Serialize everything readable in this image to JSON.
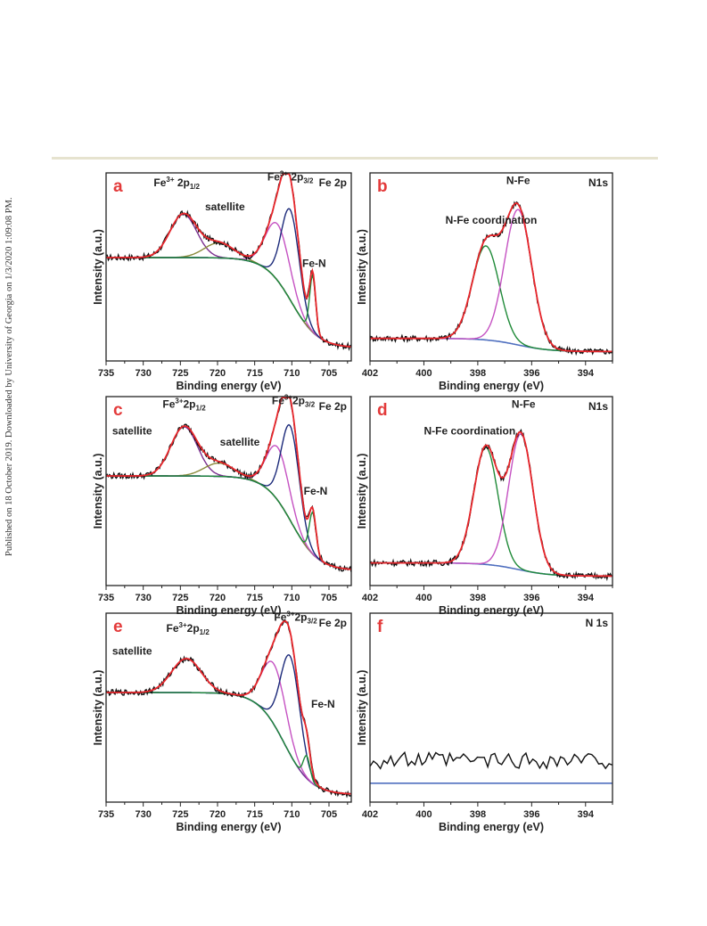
{
  "side_note": "Published on 18 October 2019. Downloaded by University of Georgia on 1/3/2020 1:09:08 PM.",
  "colors": {
    "experimental": "#111111",
    "envelope": "#e8262b",
    "background": "#4f6fbf",
    "purple": "#7b2f8f",
    "olive": "#8a8a3a",
    "magenta": "#c552c2",
    "navy": "#1c2a7a",
    "green": "#1f8a38"
  },
  "chart_data": [
    {
      "panel": "a",
      "type": "line",
      "corner_label": "Fe 2p",
      "xlabel": "Binding energy (eV)",
      "ylabel": "Intensity (a.u.)",
      "xlim": [
        735,
        702
      ],
      "x_reversed": true,
      "xticks": [
        735,
        730,
        725,
        720,
        715,
        710,
        705
      ],
      "tick_labels": [
        "735",
        "730",
        "725",
        "720",
        "715",
        "710",
        "705"
      ],
      "ylim": [
        0,
        1
      ],
      "background": {
        "start": 0.55,
        "step_center": 710,
        "end": 0.07
      },
      "peaks": [
        {
          "name": "Fe3+ 2p1/2",
          "center": 724.6,
          "height": 0.23,
          "width": 1.8,
          "color": "purple"
        },
        {
          "name": "satellite",
          "center": 719.8,
          "height": 0.08,
          "width": 2.0,
          "color": "olive"
        },
        {
          "name": "Fe3+ 2p3/2 sat.",
          "center": 711.9,
          "height": 0.3,
          "width": 1.6,
          "color": "magenta"
        },
        {
          "name": "Fe3+ 2p3/2",
          "center": 710.2,
          "height": 0.48,
          "width": 1.2,
          "color": "navy"
        },
        {
          "name": "Fe-N",
          "center": 707.2,
          "height": 0.3,
          "width": 0.4,
          "color": "green"
        }
      ],
      "labels": [
        {
          "base": "Fe",
          "sup": "3+",
          "main": " 2p",
          "sub": "1/2",
          "x": 725.5,
          "y": 0.93
        },
        {
          "base": "satellite",
          "x": 719,
          "y": 0.8
        },
        {
          "base": "Fe",
          "sup": "3+",
          "main": " 2p",
          "sub": "3/2",
          "x": 710.2,
          "y": 0.96
        },
        {
          "base": "Fe-N",
          "x": 707,
          "y": 0.5
        }
      ]
    },
    {
      "panel": "b",
      "type": "line",
      "corner_label": "N1s",
      "xlabel": "Binding energy (eV)",
      "ylabel": "Intensity (a.u.)",
      "xlim": [
        402,
        393
      ],
      "x_reversed": true,
      "xticks": [
        402,
        400,
        398,
        396,
        394
      ],
      "tick_labels": [
        "402",
        "400",
        "398",
        "396",
        "394"
      ],
      "ylim": [
        0,
        1
      ],
      "background": {
        "start": 0.12,
        "step_center": 396.5,
        "end": 0.05
      },
      "peaks": [
        {
          "name": "N-Fe coordination",
          "center": 397.7,
          "height": 0.5,
          "width": 0.5,
          "color": "green"
        },
        {
          "name": "N-Fe",
          "center": 396.5,
          "height": 0.72,
          "width": 0.5,
          "color": "magenta"
        }
      ],
      "labels": [
        {
          "base": "N-Fe coordination",
          "x": 397.5,
          "y": 0.73
        },
        {
          "base": "N-Fe",
          "x": 396.5,
          "y": 0.94
        }
      ]
    },
    {
      "panel": "c",
      "type": "line",
      "corner_label": "Fe 2p",
      "xlabel": "Binding energy (eV)",
      "ylabel": "Intensity (a.u.)",
      "xlim": [
        735,
        702
      ],
      "x_reversed": true,
      "xticks": [
        735,
        730,
        725,
        720,
        715,
        710,
        705
      ],
      "tick_labels": [
        "735",
        "730",
        "725",
        "720",
        "715",
        "710",
        "705"
      ],
      "ylim": [
        0,
        1
      ],
      "background": {
        "start": 0.58,
        "step_center": 710,
        "end": 0.08
      },
      "peaks": [
        {
          "name": "Fe3+ 2p1/2",
          "center": 724.5,
          "height": 0.26,
          "width": 1.8,
          "color": "purple"
        },
        {
          "name": "satellite",
          "center": 719.8,
          "height": 0.07,
          "width": 2.0,
          "color": "olive"
        },
        {
          "name": "Fe3+ 2p3/2 sat.",
          "center": 711.9,
          "height": 0.28,
          "width": 1.5,
          "color": "magenta"
        },
        {
          "name": "Fe3+ 2p3/2",
          "center": 710.2,
          "height": 0.5,
          "width": 1.2,
          "color": "navy"
        },
        {
          "name": "Fe-N",
          "center": 707.2,
          "height": 0.22,
          "width": 0.45,
          "color": "green"
        }
      ],
      "labels": [
        {
          "base": "satellite",
          "x": 731.5,
          "y": 0.8
        },
        {
          "base": "Fe",
          "sup": "3+",
          "main": "2p",
          "sub": "1/2",
          "x": 724.5,
          "y": 0.94
        },
        {
          "base": "satellite",
          "x": 717,
          "y": 0.74
        },
        {
          "base": "Fe",
          "sup": "3+",
          "main": "2p",
          "sub": "3/2",
          "x": 709.8,
          "y": 0.96
        },
        {
          "base": "Fe-N",
          "x": 706.8,
          "y": 0.48
        }
      ]
    },
    {
      "panel": "d",
      "type": "line",
      "corner_label": "N1s",
      "xlabel": "Binding energy (eV)",
      "ylabel": "Intensity (a.u.)",
      "xlim": [
        402,
        393
      ],
      "x_reversed": true,
      "xticks": [
        402,
        400,
        398,
        396,
        394
      ],
      "tick_labels": [
        "402",
        "400",
        "398",
        "396",
        "394"
      ],
      "ylim": [
        0,
        1
      ],
      "background": {
        "start": 0.12,
        "step_center": 396.5,
        "end": 0.05
      },
      "peaks": [
        {
          "name": "N-Fe coordination",
          "center": 397.7,
          "height": 0.62,
          "width": 0.45,
          "color": "green"
        },
        {
          "name": "N-Fe",
          "center": 396.4,
          "height": 0.72,
          "width": 0.45,
          "color": "magenta"
        }
      ],
      "labels": [
        {
          "base": "N-Fe coordination",
          "x": 398.3,
          "y": 0.8
        },
        {
          "base": "N-Fe",
          "x": 396.3,
          "y": 0.94
        }
      ]
    },
    {
      "panel": "e",
      "type": "line",
      "corner_label": "Fe 2p",
      "xlabel": "Binding energy (eV)",
      "ylabel": "Intensity (a.u.)",
      "xlim": [
        735,
        702
      ],
      "x_reversed": true,
      "xticks": [
        735,
        730,
        725,
        720,
        715,
        710,
        705
      ],
      "tick_labels": [
        "735",
        "730",
        "725",
        "720",
        "715",
        "710",
        "705"
      ],
      "ylim": [
        0,
        1
      ],
      "background": {
        "start": 0.58,
        "step_center": 711,
        "end": 0.04
      },
      "peaks": [
        {
          "name": "Fe3+ 2p1/2",
          "center": 724.2,
          "height": 0.18,
          "width": 2.0,
          "color": "purple"
        },
        {
          "name": "Fe3+ 2p3/2 sat.",
          "center": 712.4,
          "height": 0.32,
          "width": 1.6,
          "color": "magenta"
        },
        {
          "name": "Fe3+ 2p3/2",
          "center": 710.2,
          "height": 0.52,
          "width": 1.3,
          "color": "navy"
        },
        {
          "name": "Fe-N",
          "center": 708.0,
          "height": 0.12,
          "width": 0.45,
          "color": "green"
        }
      ],
      "labels": [
        {
          "base": "satellite",
          "x": 731.5,
          "y": 0.78
        },
        {
          "base": "Fe",
          "sup": "3+",
          "main": "2p",
          "sub": "1/2",
          "x": 724,
          "y": 0.9
        },
        {
          "base": "Fe",
          "sup": "3+",
          "main": "2p",
          "sub": "3/2",
          "x": 709.5,
          "y": 0.96
        },
        {
          "base": "Fe-N",
          "x": 705.8,
          "y": 0.5
        }
      ]
    },
    {
      "panel": "f",
      "type": "line",
      "corner_label": "N 1s",
      "xlabel": "Binding energy (eV)",
      "ylabel": "Intensity (a.u.)",
      "xlim": [
        402,
        393
      ],
      "x_reversed": true,
      "xticks": [
        402,
        400,
        398,
        396,
        394
      ],
      "tick_labels": [
        "402",
        "400",
        "398",
        "396",
        "394"
      ],
      "ylim": [
        0,
        1
      ],
      "background": {
        "start": 0.1,
        "step_center": 396.5,
        "end": 0.1
      },
      "peaks": [],
      "labels": []
    }
  ]
}
